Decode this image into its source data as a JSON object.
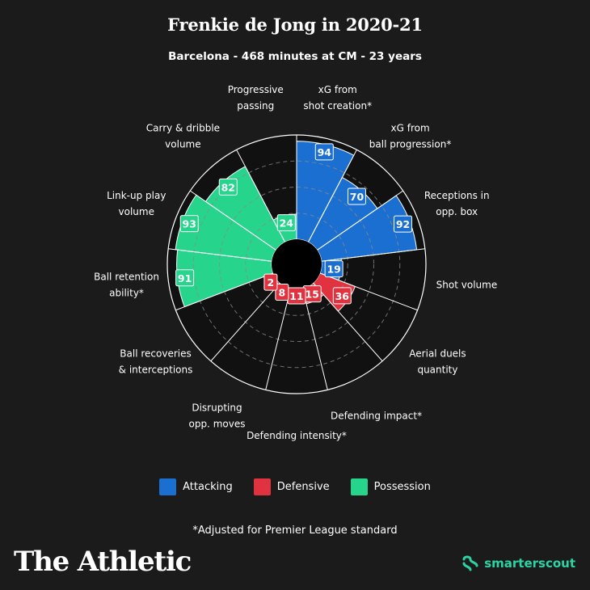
{
  "header": {
    "title": "Frenkie de Jong in 2020-21",
    "subtitle": "Barcelona - 468 minutes at CM - 23 years"
  },
  "colors": {
    "attacking": "#1a6fd0",
    "defensive": "#e0333f",
    "possession": "#27d48c",
    "background": "#1b1b1b"
  },
  "chart_data": {
    "type": "polar-bar",
    "max": 100,
    "rings": [
      25,
      50,
      75,
      100
    ],
    "categories": [
      {
        "label": [
          "xG from",
          "shot creation*"
        ],
        "value": 94,
        "group": "attacking"
      },
      {
        "label": [
          "xG from",
          "ball progression*"
        ],
        "value": 70,
        "group": "attacking"
      },
      {
        "label": [
          "Receptions in",
          "opp. box"
        ],
        "value": 92,
        "group": "attacking"
      },
      {
        "label": [
          "Shot volume"
        ],
        "value": 19,
        "group": "attacking"
      },
      {
        "label": [
          "Aerial duels",
          "quantity"
        ],
        "value": 36,
        "group": "defensive"
      },
      {
        "label": [
          "Defending impact*"
        ],
        "value": 15,
        "group": "defensive"
      },
      {
        "label": [
          "Defending intensity*"
        ],
        "value": 11,
        "group": "defensive"
      },
      {
        "label": [
          "Disrupting",
          "opp. moves"
        ],
        "value": 8,
        "group": "defensive"
      },
      {
        "label": [
          "Ball recoveries",
          "& interceptions"
        ],
        "value": 2,
        "group": "defensive"
      },
      {
        "label": [
          "Ball retention",
          "ability*"
        ],
        "value": 91,
        "group": "possession"
      },
      {
        "label": [
          "Link-up play",
          "volume"
        ],
        "value": 93,
        "group": "possession"
      },
      {
        "label": [
          "Carry & dribble",
          "volume"
        ],
        "value": 82,
        "group": "possession"
      },
      {
        "label": [
          "Progressive",
          "passing"
        ],
        "value": 24,
        "group": "possession"
      }
    ]
  },
  "legend": {
    "attacking": "Attacking",
    "defensive": "Defensive",
    "possession": "Possession"
  },
  "footnote": "*Adjusted for Premier League standard",
  "brand": "The Athletic",
  "partner": "smarterscout"
}
